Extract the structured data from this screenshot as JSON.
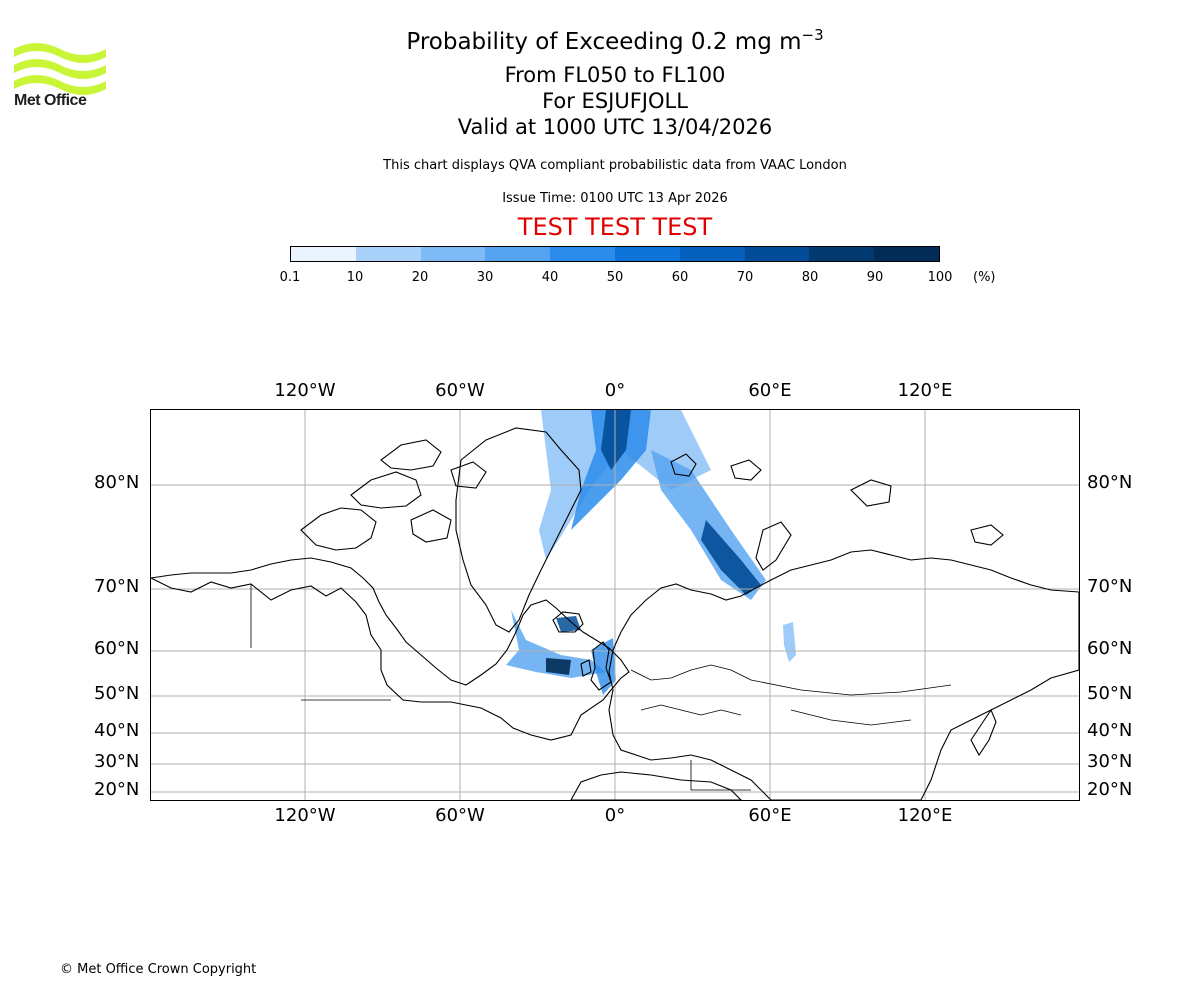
{
  "header": {
    "title_prefix": "Probability of Exceeding 0.2 mg m",
    "title_superscript": "−3",
    "level_range": "From FL050 to FL100",
    "volcano": "For ESJUFJOLL",
    "valid_time": "Valid at 1000 UTC 13/04/2026",
    "description": "This chart displays QVA compliant probabilistic data from VAAC London",
    "issue_time": "Issue Time: 0100 UTC 13 Apr 2026",
    "test_banner": "TEST TEST TEST"
  },
  "logo": {
    "text": "Met Office",
    "icon": "met-office-wave-logo",
    "color": "#c8f535"
  },
  "colorbar": {
    "ticks": [
      "0.1",
      "10",
      "20",
      "30",
      "40",
      "50",
      "60",
      "70",
      "80",
      "90",
      "100"
    ],
    "unit": "(%)",
    "colors": [
      "#eaf4fe",
      "#cde5fc",
      "#a9d1fa",
      "#7dbaf6",
      "#53a3f1",
      "#2b8ceb",
      "#0d73d9",
      "#0560bd",
      "#034c97",
      "#02396f",
      "#022b55"
    ]
  },
  "map": {
    "lon_labels": [
      "120°W",
      "60°W",
      "0°",
      "60°E",
      "120°E"
    ],
    "lat_labels": [
      "80°N",
      "70°N",
      "60°N",
      "50°N",
      "40°N",
      "30°N",
      "20°N"
    ],
    "lon_ticks": [
      -120,
      -60,
      0,
      60,
      120
    ],
    "lat_ticks": [
      80,
      70,
      60,
      50,
      40,
      30,
      20
    ],
    "projection": "cylindrical, lat-stretched",
    "extent": {
      "lon": [
        -180,
        180
      ],
      "lat": [
        18,
        88
      ]
    },
    "grid": true,
    "plume_areas": [
      "north-atlantic to greenland sea",
      "arctic ocean north of svalbard",
      "barents sea to kola peninsula",
      "south of iceland",
      "north sea and british isles",
      "west siberia near ural"
    ]
  },
  "footer": {
    "copyright": "© Met Office Crown Copyright"
  }
}
